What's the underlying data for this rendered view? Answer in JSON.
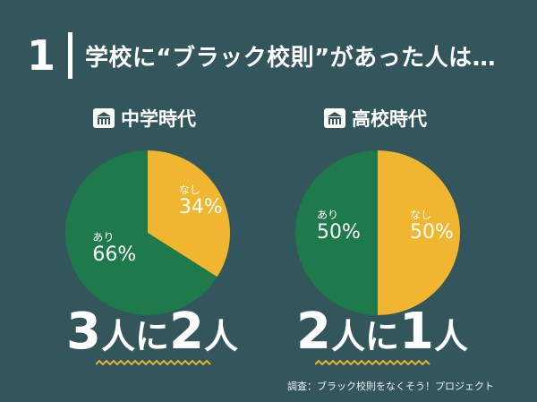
{
  "header": {
    "number": "1",
    "title": "学校に“ブラック校則”があった人は…"
  },
  "colors": {
    "background": "#33555c",
    "ari": "#1e7a4b",
    "nashi": "#f1b630",
    "accent": "#e8b030"
  },
  "chart_data": [
    {
      "type": "pie",
      "title": "中学時代",
      "icon": "school-building-icon",
      "slices": [
        {
          "label": "なし",
          "value": 34,
          "display": "34%",
          "color": "#f1b630"
        },
        {
          "label": "あり",
          "value": 66,
          "display": "66%",
          "color": "#1e7a4b"
        }
      ],
      "summary": {
        "a": "3",
        "mid": "人に",
        "b": "2",
        "end": "人"
      }
    },
    {
      "type": "pie",
      "title": "高校時代",
      "icon": "school-building-icon",
      "slices": [
        {
          "label": "なし",
          "value": 50,
          "display": "50%",
          "color": "#f1b630"
        },
        {
          "label": "あり",
          "value": 50,
          "display": "50%",
          "color": "#1e7a4b"
        }
      ],
      "summary": {
        "a": "2",
        "mid": "人に",
        "b": "1",
        "end": "人"
      }
    }
  ],
  "source": "調査：ブラック校則をなくそう！プロジェクト"
}
